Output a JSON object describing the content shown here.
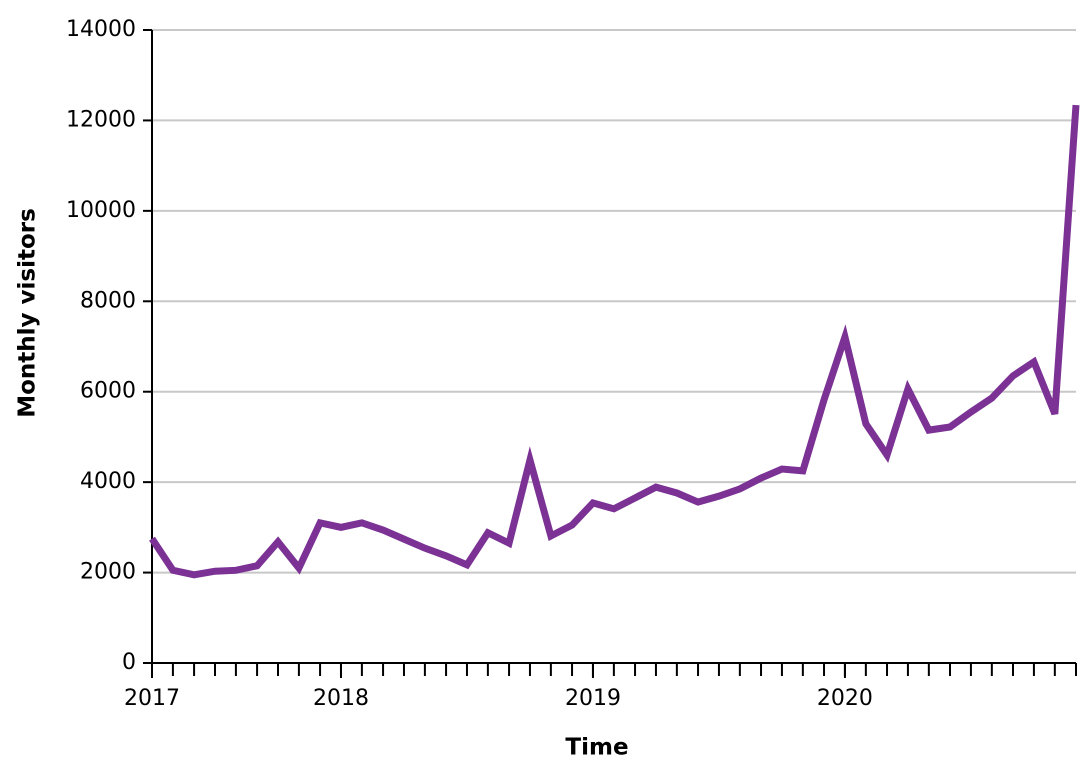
{
  "chart_data": {
    "type": "line",
    "x_label": "Time",
    "y_label": "Monthly visitors",
    "x": [
      2017.25,
      2017.333,
      2017.417,
      2017.5,
      2017.583,
      2017.667,
      2017.75,
      2017.833,
      2017.917,
      2018,
      2018.083,
      2018.167,
      2018.25,
      2018.333,
      2018.417,
      2018.5,
      2018.583,
      2018.667,
      2018.75,
      2018.833,
      2018.917,
      2019,
      2019.083,
      2019.167,
      2019.25,
      2019.333,
      2019.417,
      2019.5,
      2019.583,
      2019.667,
      2019.75,
      2019.833,
      2019.917,
      2020,
      2020.083,
      2020.167,
      2020.25,
      2020.333,
      2020.417,
      2020.5,
      2020.583,
      2020.667,
      2020.75,
      2020.833,
      2020.917
    ],
    "series": [
      {
        "color": "#7b3294",
        "values": [
          2750,
          2050,
          1950,
          2030,
          2050,
          2150,
          2680,
          2100,
          3100,
          3000,
          3100,
          2940,
          2740,
          2540,
          2370,
          2170,
          2880,
          2650,
          4490,
          2810,
          3050,
          3540,
          3410,
          3650,
          3890,
          3760,
          3560,
          3690,
          3850,
          4090,
          4290,
          4250,
          5820,
          7210,
          5290,
          4600,
          6060,
          5150,
          5220,
          5550,
          5860,
          6350,
          6660,
          5510,
          12340
        ]
      }
    ],
    "xlim": [
      2017.25,
      2020.917
    ],
    "xticks": [
      {
        "value": 2017.25,
        "label": "2017"
      },
      2018,
      2019,
      2020
    ],
    "ylim": [
      0,
      14000
    ],
    "yticks": [
      0,
      2000,
      4000,
      6000,
      8000,
      10000,
      12000,
      14000
    ],
    "grid": true
  }
}
